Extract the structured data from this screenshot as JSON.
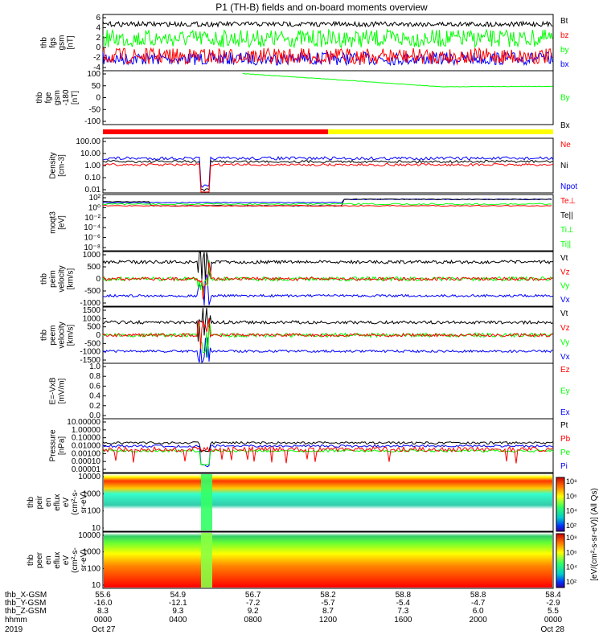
{
  "title": "P1 (TH-B) fields and on-board moments overview",
  "colors": {
    "black": "#000000",
    "red": "#ff0000",
    "green": "#00ff00",
    "blue": "#0000ff",
    "yellow": "#ffff00"
  },
  "chart_data": [
    {
      "type": "line",
      "panel": "fgs",
      "ylabel": [
        "thb",
        "fgs",
        "gsm",
        "[nT]"
      ],
      "ylim": [
        -5,
        6
      ],
      "ticks": [
        "6",
        "4",
        "2",
        "0",
        "-2",
        "-4"
      ],
      "series": [
        {
          "name": "Bt",
          "color": "black",
          "level": 4
        },
        {
          "name": "bz",
          "color": "red",
          "level": -1.5
        },
        {
          "name": "by",
          "color": "green",
          "level": 1.2
        },
        {
          "name": "bx",
          "color": "blue",
          "level": -2.5
        }
      ]
    },
    {
      "type": "line",
      "panel": "fge",
      "ylabel": [
        "thb",
        "fge",
        "gsm",
        "-180",
        "[nT]"
      ],
      "ylim": [
        -120,
        105
      ],
      "ticks": [
        "100",
        "50",
        "0",
        "-50",
        "-100"
      ],
      "series": [
        {
          "name": "By",
          "color": "green"
        }
      ],
      "by_curve": {
        "x": [
          0.25,
          0.5,
          0.62,
          0.75,
          1.0
        ],
        "y": [
          100,
          70,
          55,
          38,
          40
        ]
      }
    },
    {
      "type": "bar",
      "panel": "state",
      "label": "Bx",
      "segments": [
        {
          "x0": 0.0,
          "x1": 0.5,
          "color": "red"
        },
        {
          "x0": 0.5,
          "x1": 1.0,
          "color": "yellow"
        }
      ]
    },
    {
      "type": "line",
      "panel": "density",
      "ylabel": [
        "Density",
        "[cm-3]"
      ],
      "ylim": [
        0.01,
        100
      ],
      "ticks": [
        "100.00",
        "10.00",
        "1.00",
        "0.10",
        "0.01"
      ],
      "series": [
        {
          "name": "Ne",
          "color": "red",
          "level": 1.5
        },
        {
          "name": "Ni",
          "color": "black",
          "level": 2
        },
        {
          "name": "Npot",
          "color": "blue",
          "level": 2.5
        }
      ]
    },
    {
      "type": "line",
      "panel": "temperature",
      "ylabel": [
        "moqt3",
        "[eV]"
      ],
      "ticks": [
        "10²",
        "10⁰",
        "10⁻²",
        "10⁻⁴",
        "10⁻⁶",
        "10⁻⁸"
      ],
      "series": [
        {
          "name": "Te⊥",
          "color": "red"
        },
        {
          "name": "Te||",
          "color": "black"
        },
        {
          "name": "Ti⊥",
          "color": "green"
        },
        {
          "name": "Ti||",
          "color": "green"
        }
      ]
    },
    {
      "type": "line",
      "panel": "peim",
      "ylabel": [
        "thb",
        "peim",
        "velocity",
        "[km/s]"
      ],
      "ylim": [
        -1000,
        1000
      ],
      "ticks": [
        "1000",
        "500",
        "0",
        "-500",
        "-1000"
      ],
      "series": [
        {
          "name": "Vt",
          "color": "black",
          "level": 550
        },
        {
          "name": "Vz",
          "color": "red",
          "level": 0
        },
        {
          "name": "Vy",
          "color": "green",
          "level": 0
        },
        {
          "name": "Vx",
          "color": "blue",
          "level": -550
        }
      ]
    },
    {
      "type": "line",
      "panel": "peem",
      "ylabel": [
        "thb",
        "peem",
        "velocity",
        "[km/s]"
      ],
      "ylim": [
        -1500,
        1500
      ],
      "ticks": [
        "1500",
        "1000",
        "500",
        "0",
        "-500",
        "-1000",
        "-1500"
      ],
      "series": [
        {
          "name": "Vt",
          "color": "black",
          "level": 550
        },
        {
          "name": "Vz",
          "color": "red",
          "level": 0
        },
        {
          "name": "Vy",
          "color": "green",
          "level": 0
        },
        {
          "name": "Vx",
          "color": "blue",
          "level": -550
        }
      ]
    },
    {
      "type": "line",
      "panel": "efield",
      "ylabel": [
        "E=-VxB",
        "[mV/m]"
      ],
      "ylim": [
        0,
        1
      ],
      "ticks": [
        "1.0",
        "0.8",
        "0.6",
        "0.4",
        "0.2",
        "0.0"
      ],
      "series": [
        {
          "name": "Ez",
          "color": "red"
        },
        {
          "name": "Ey",
          "color": "green"
        },
        {
          "name": "Ex",
          "color": "blue"
        }
      ]
    },
    {
      "type": "line",
      "panel": "pressure",
      "ylabel": [
        "Pressure",
        "[nPa]"
      ],
      "ylim": [
        1e-05,
        10
      ],
      "ticks": [
        "10.00000",
        "1.00000",
        "0.10000",
        "0.01000",
        "0.00100",
        "0.00010",
        "0.00001"
      ],
      "series": [
        {
          "name": "Pt",
          "color": "black",
          "level": 0.03
        },
        {
          "name": "Pb",
          "color": "red",
          "level": 0.006
        },
        {
          "name": "Pe",
          "color": "green",
          "level": 0.005
        },
        {
          "name": "Pi",
          "color": "blue",
          "level": 0.015
        }
      ]
    },
    {
      "type": "heatmap",
      "panel": "peir",
      "ylabel": [
        "thb",
        "peir",
        "en",
        "eflux",
        "eV",
        "(cm²-s-",
        "sr-eV)"
      ],
      "ticks": [
        "10000",
        "1000",
        "100",
        "10"
      ]
    },
    {
      "type": "heatmap",
      "panel": "peer",
      "ylabel": [
        "thb",
        "peer",
        "en",
        "eflux",
        "eV",
        "(cm²-s-",
        "sr-eV)"
      ],
      "ticks": [
        "10000",
        "1000",
        "100",
        "10"
      ]
    }
  ],
  "colorbar": {
    "label": "[eV/(cm²-s-sr-eV)] (All Qs)",
    "ticks_top": [
      "10⁸",
      "10⁶",
      "10⁴",
      "10²"
    ],
    "ticks_bottom": [
      "10⁸",
      "10⁶",
      "10⁴",
      "10²"
    ]
  },
  "xaxis": {
    "rows": [
      {
        "label": "thb_X-GSM",
        "values": [
          "55.6",
          "54.9",
          "56.7",
          "58.2",
          "58.8",
          "58.8",
          "58.4"
        ]
      },
      {
        "label": "thb_Y-GSM",
        "values": [
          "-16.0",
          "-12.1",
          "-7.2",
          "-5.7",
          "-5.4",
          "-4.7",
          "-2.9"
        ]
      },
      {
        "label": "thb_Z-GSM",
        "values": [
          "8.3",
          "9.3",
          "9.2",
          "8.7",
          "7.3",
          "6.0",
          "5.5"
        ]
      },
      {
        "label": "hhmm",
        "values": [
          "0000",
          "0400",
          "0800",
          "1200",
          "1600",
          "2000",
          "0000"
        ]
      },
      {
        "label": "2019",
        "values": [
          "Oct 27",
          "",
          "",
          "",
          "",
          "",
          "Oct 28"
        ]
      }
    ]
  }
}
